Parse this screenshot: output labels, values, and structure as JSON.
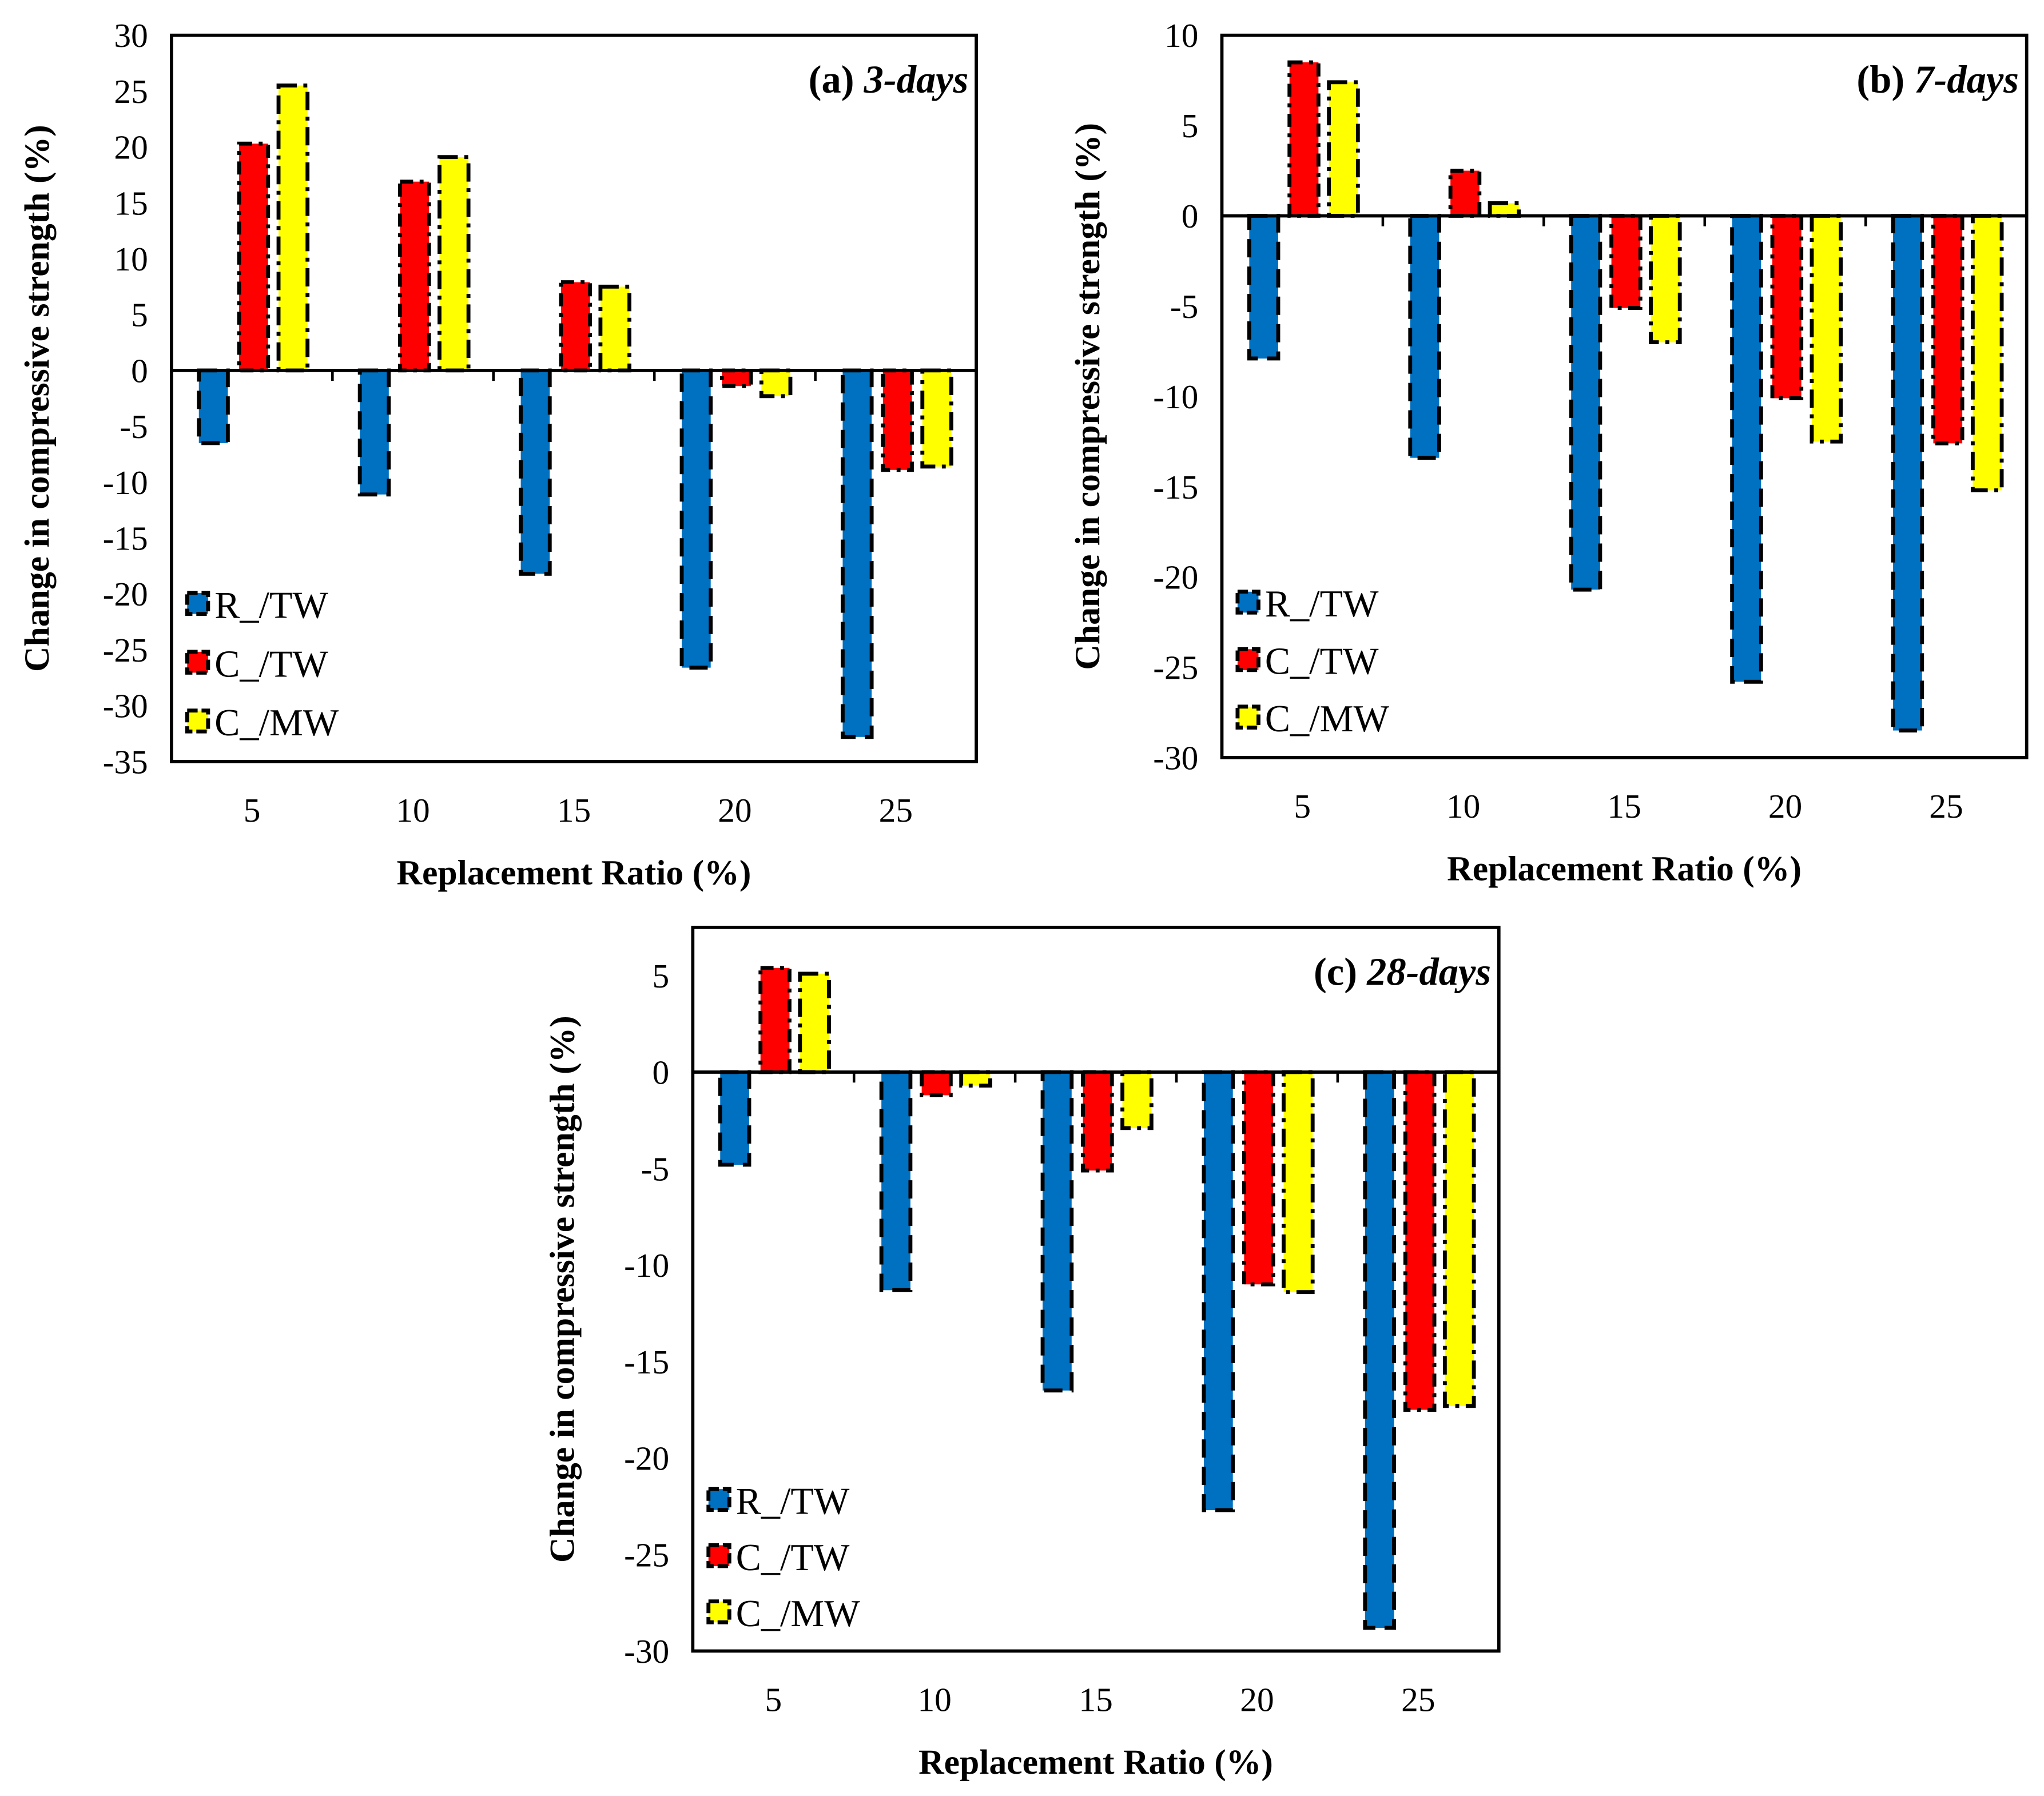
{
  "chart_data": [
    {
      "type": "bar",
      "title_prefix": "(a)",
      "title_italic": "3-days",
      "xlabel": "Replacement Ratio (%)",
      "ylabel": "Change in compressive strength (%)",
      "categories": [
        "5",
        "10",
        "15",
        "20",
        "25"
      ],
      "ylim": [
        -35,
        30
      ],
      "yticks": [
        30,
        25,
        20,
        15,
        10,
        5,
        0,
        -5,
        -10,
        -15,
        -20,
        -25,
        -30,
        -35
      ],
      "legend_position": "bottom-left",
      "series": [
        {
          "name": "R_/TW",
          "color": "#0070C0",
          "values": [
            -6.5,
            -11.1,
            -18.2,
            -26.6,
            -32.8
          ]
        },
        {
          "name": "C_/TW",
          "color": "#FF0000",
          "values": [
            20.3,
            16.9,
            7.9,
            -1.4,
            -8.9
          ]
        },
        {
          "name": "C_/MW",
          "color": "#FFFF00",
          "values": [
            25.5,
            19.1,
            7.5,
            -2.3,
            -8.6
          ]
        }
      ]
    },
    {
      "type": "bar",
      "title_prefix": "(b)",
      "title_italic": "7-days",
      "xlabel": "Replacement Ratio (%)",
      "ylabel": "Change in compressive strength (%)",
      "categories": [
        "5",
        "10",
        "15",
        "20",
        "25"
      ],
      "ylim": [
        -30,
        10
      ],
      "yticks": [
        10,
        5,
        0,
        -5,
        -10,
        -15,
        -20,
        -25,
        -30
      ],
      "legend_position": "bottom-left",
      "series": [
        {
          "name": "R_/TW",
          "color": "#0070C0",
          "values": [
            -7.9,
            -13.4,
            -20.7,
            -25.8,
            -28.5
          ]
        },
        {
          "name": "C_/TW",
          "color": "#FF0000",
          "values": [
            8.5,
            2.5,
            -5.1,
            -10.1,
            -12.6
          ]
        },
        {
          "name": "C_/MW",
          "color": "#FFFF00",
          "values": [
            7.4,
            0.7,
            -7.0,
            -12.5,
            -15.2
          ]
        }
      ]
    },
    {
      "type": "bar",
      "title_prefix": "(c)",
      "title_italic": "28-days",
      "xlabel": "Replacement Ratio (%)",
      "ylabel": "Change in compressive strength (%)",
      "categories": [
        "5",
        "10",
        "15",
        "20",
        "25"
      ],
      "ylim": [
        -30,
        7.5
      ],
      "yticks": [
        5,
        0,
        -5,
        -10,
        -15,
        -20,
        -25,
        -30
      ],
      "legend_position": "bottom-left",
      "series": [
        {
          "name": "R_/TW",
          "color": "#0070C0",
          "values": [
            -4.8,
            -11.3,
            -16.5,
            -22.7,
            -28.8
          ]
        },
        {
          "name": "C_/TW",
          "color": "#FF0000",
          "values": [
            5.4,
            -1.2,
            -5.1,
            -11.0,
            -17.5
          ]
        },
        {
          "name": "C_/MW",
          "color": "#FFFF00",
          "values": [
            5.1,
            -0.7,
            -2.9,
            -11.4,
            -17.3
          ]
        }
      ]
    }
  ]
}
